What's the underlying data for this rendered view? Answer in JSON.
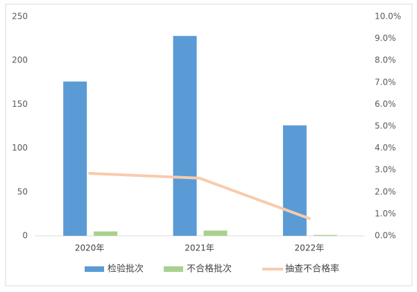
{
  "chart_data": {
    "type": "bar-line",
    "categories": [
      "2020年",
      "2021年",
      "2022年"
    ],
    "series": [
      {
        "name": "检验批次",
        "color": "#5b9bd5",
        "type": "bar",
        "values": [
          176,
          228,
          126
        ]
      },
      {
        "name": "不合格批次",
        "color": "#a9d18e",
        "type": "bar",
        "values": [
          5,
          6,
          1
        ]
      },
      {
        "name": "抽查不合格率",
        "color": "#f8cbad",
        "type": "line",
        "axis": "y2",
        "values": [
          2.85,
          2.63,
          0.79
        ]
      }
    ],
    "ylim": [
      0,
      250
    ],
    "yticks": [
      0,
      50,
      100,
      150,
      200,
      250
    ],
    "y2lim": [
      0,
      10
    ],
    "y2ticks": [
      {
        "value": 0,
        "label": "0.0%"
      },
      {
        "value": 1,
        "label": "1.0%"
      },
      {
        "value": 2,
        "label": "2.0%"
      },
      {
        "value": 3,
        "label": "3.0%"
      },
      {
        "value": 4,
        "label": "4.0%"
      },
      {
        "value": 5,
        "label": "5.0%"
      },
      {
        "value": 6,
        "label": "6.0%"
      },
      {
        "value": 7,
        "label": "7.0%"
      },
      {
        "value": 8,
        "label": "8.0%"
      },
      {
        "value": 9,
        "label": "9.0%"
      },
      {
        "value": 10,
        "label": "10.0%"
      }
    ],
    "legend": "bottom"
  }
}
